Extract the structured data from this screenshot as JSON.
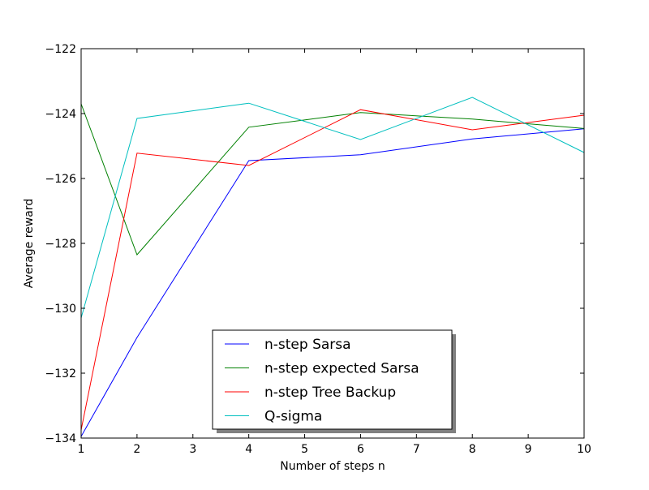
{
  "chart_data": {
    "type": "line",
    "title": "",
    "xlabel": "Number of steps n",
    "ylabel": "Average reward",
    "xlim": [
      1,
      10
    ],
    "ylim": [
      -134,
      -122
    ],
    "xticks": [
      1,
      2,
      3,
      4,
      5,
      6,
      7,
      8,
      9,
      10
    ],
    "xtick_labels": [
      "1",
      "2",
      "3",
      "4",
      "5",
      "6",
      "7",
      "8",
      "9",
      "10"
    ],
    "yticks": [
      -134,
      -132,
      -130,
      -128,
      -126,
      -124,
      -122
    ],
    "ytick_labels": [
      "−134",
      "−132",
      "−130",
      "−128",
      "−126",
      "−124",
      "−122"
    ],
    "grid": false,
    "legend_position": "lower center",
    "x": [
      1,
      2,
      4,
      6,
      8,
      10
    ],
    "series": [
      {
        "name": "n-step Sarsa",
        "color": "#0000ff",
        "values": [
          -133.95,
          -130.9,
          -125.45,
          -125.27,
          -124.78,
          -124.47
        ]
      },
      {
        "name": "n-step expected Sarsa",
        "color": "#008000",
        "values": [
          -123.7,
          -128.35,
          -124.42,
          -123.97,
          -124.17,
          -124.46
        ]
      },
      {
        "name": "n-step Tree Backup",
        "color": "#ff0000",
        "values": [
          -133.75,
          -125.22,
          -125.6,
          -123.88,
          -124.5,
          -124.05
        ]
      },
      {
        "name": "Q-sigma",
        "color": "#00bfbf",
        "values": [
          -130.3,
          -124.15,
          -123.68,
          -124.8,
          -123.5,
          -125.2
        ]
      }
    ]
  }
}
